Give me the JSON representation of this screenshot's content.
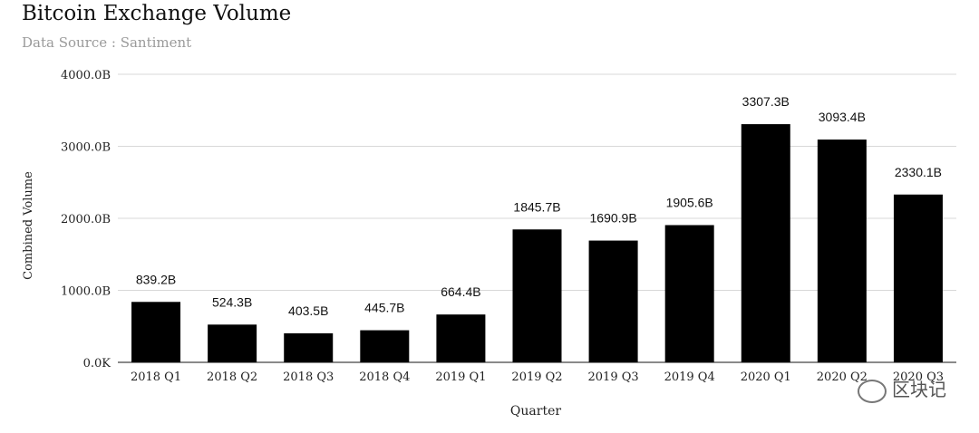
{
  "chart_data": {
    "type": "bar",
    "title": "Bitcoin Exchange Volume",
    "subtitle": "Data Source : Santiment",
    "xlabel": "Quarter",
    "ylabel": "Combined Volume",
    "categories": [
      "2018 Q1",
      "2018 Q2",
      "2018 Q3",
      "2018 Q4",
      "2019 Q1",
      "2019 Q2",
      "2019 Q3",
      "2019 Q4",
      "2020 Q1",
      "2020 Q2",
      "2020 Q3"
    ],
    "values": [
      839.2,
      524.3,
      403.5,
      445.7,
      664.4,
      1845.7,
      1690.9,
      1905.6,
      3307.3,
      3093.4,
      2330.1
    ],
    "value_labels": [
      "839.2B",
      "524.3B",
      "403.5B",
      "445.7B",
      "664.4B",
      "1845.7B",
      "1690.9B",
      "1905.6B",
      "3307.3B",
      "3093.4B",
      "2330.1B"
    ],
    "yticks": [
      0,
      1000,
      2000,
      3000,
      4000
    ],
    "ytick_labels": [
      "0.0K",
      "1000.0B",
      "2000.0B",
      "3000.0B",
      "4000.0B"
    ],
    "ylim": [
      0,
      4000
    ],
    "grid": true,
    "bar_color": "#000000"
  },
  "watermark": "区块记"
}
